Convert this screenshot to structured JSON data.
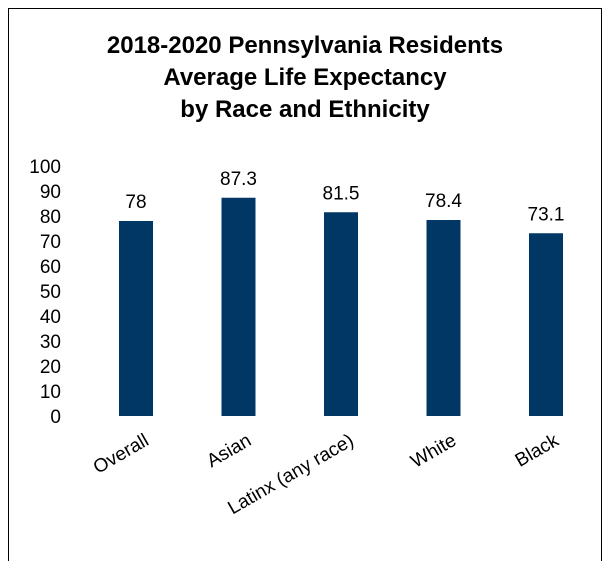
{
  "chart_data": {
    "type": "bar",
    "title_lines": [
      "2018-2020 Pennsylvania Residents",
      "Average Life Expectancy",
      "by Race and Ethnicity"
    ],
    "categories": [
      "Overall",
      "Asian",
      "Latinx (any race)",
      "White",
      "Black"
    ],
    "values": [
      78,
      87.3,
      81.5,
      78.4,
      73.1
    ],
    "data_labels": [
      "78",
      "87.3",
      "81.5",
      "78.4",
      "73.1"
    ],
    "yticks": [
      "0",
      "10",
      "20",
      "30",
      "40",
      "50",
      "60",
      "70",
      "80",
      "90",
      "100"
    ],
    "ylim": [
      0,
      100
    ],
    "grid": false,
    "legend": "none",
    "bar_color": "#003764"
  }
}
